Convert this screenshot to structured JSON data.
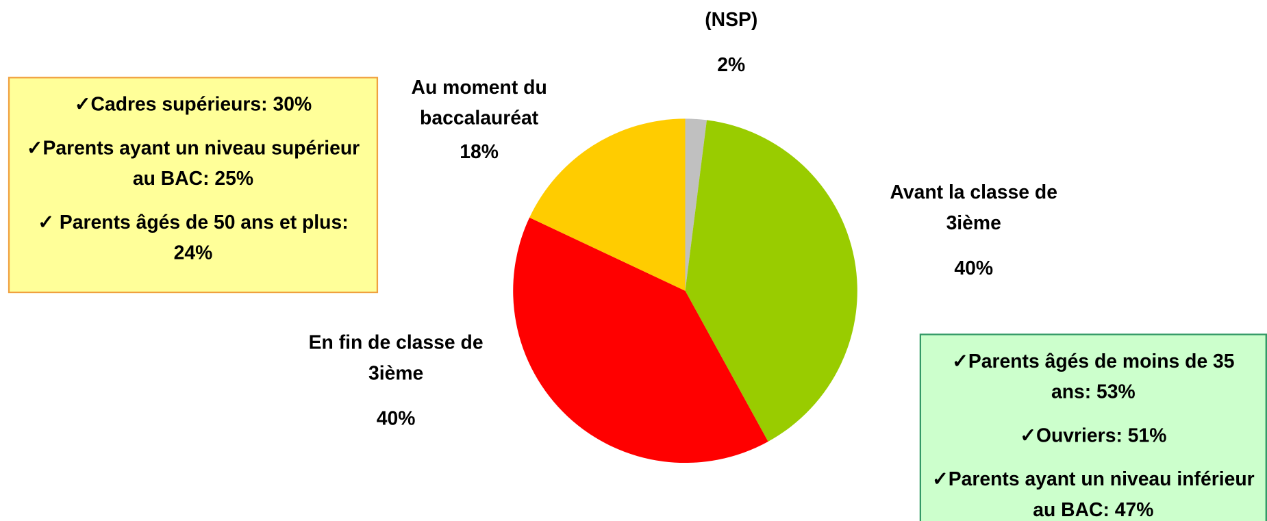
{
  "chart_data": {
    "type": "pie",
    "categories": [
      "(NSP)",
      "Avant la classe de 3ième",
      "En fin de classe de 3ième",
      "Au moment du baccalauréat"
    ],
    "values": [
      2,
      40,
      40,
      18
    ],
    "value_labels": [
      "2%",
      "40%",
      "40%",
      "18%"
    ],
    "colors": [
      "#c0c0c0",
      "#99cc00",
      "#ff0000",
      "#ffcc00"
    ],
    "annotations": [
      {
        "items": [
          "✓Cadres supérieurs: 30%",
          "✓Parents ayant un niveau supérieur au BAC: 25%",
          "✓ Parents âgés de 50 ans et plus: 24%"
        ],
        "color": "#ffff99",
        "border": "#f0a040"
      },
      {
        "items": [
          "✓Parents âgés de moins de 35 ans: 53%",
          "✓Ouvriers: 51%",
          "✓Parents ayant un niveau inférieur au BAC: 47%"
        ],
        "color": "#ccffcc",
        "border": "#339966"
      }
    ]
  }
}
